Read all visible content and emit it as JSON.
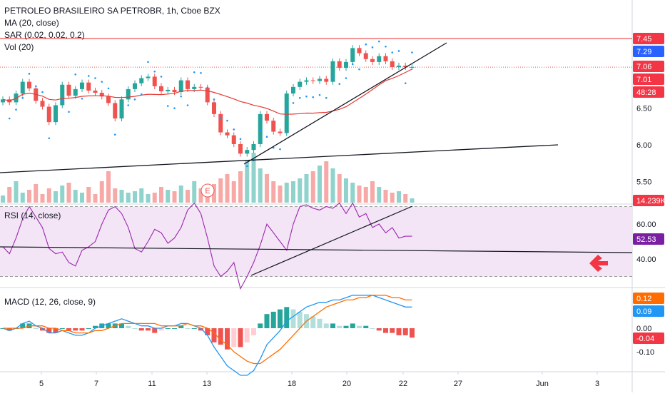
{
  "header": {
    "title": "PETROLEO BRASILEIRO SA PETROBR, 1h, Cboe BZX",
    "indicators": [
      "MA (20, close)",
      "SAR (0.02, 0.02, 0.2)",
      "Vol (20)"
    ]
  },
  "panes": {
    "rsi_label": "RSI (14, close)",
    "macd_label": "MACD (12, 26, close, 9)"
  },
  "price_axis": {
    "ticks": [
      "6.50",
      "6.00",
      "5.50"
    ],
    "markers": [
      {
        "text": "7.45",
        "color": "#f23645"
      },
      {
        "text": "7.29",
        "color": "#2962ff"
      },
      {
        "text": "7.06",
        "color": "#f23645"
      },
      {
        "text": "7.01",
        "color": "#f23645"
      },
      {
        "text": "48:28",
        "color": "#f23645"
      },
      {
        "text": "14.239K",
        "color": "#f23645"
      }
    ]
  },
  "rsi_axis": {
    "ticks": [
      "60.00",
      "40.00"
    ],
    "marker": {
      "text": "52.53",
      "color": "#7b1fa2"
    }
  },
  "macd_axis": {
    "ticks": [
      "0.00",
      "-0.10"
    ],
    "markers": [
      {
        "text": "0.12",
        "color": "#ff6d00"
      },
      {
        "text": "0.09",
        "color": "#2196f3"
      },
      {
        "text": "-0.04",
        "color": "#f23645"
      }
    ]
  },
  "time_axis": {
    "labels": [
      "5",
      "7",
      "11",
      "13",
      "18",
      "20",
      "22",
      "27",
      "Jun",
      "3"
    ]
  },
  "earnings_badge": "E",
  "colors": {
    "up": "#26a69a",
    "down": "#ef5350",
    "ma": "#e53935",
    "sar": "#2196f3",
    "rsi": "#9c27b0",
    "macd": "#2196f3",
    "signal": "#ff6d00",
    "rsi_band": "#f3e5f5",
    "arrow": "#f23645"
  },
  "chart_data": [
    {
      "type": "candlestick",
      "title": "PETROLEO BRASILEIRO SA PETROBR, 1h, Cboe BZX",
      "x": [
        "4",
        "5",
        "6",
        "7",
        "10",
        "11",
        "12",
        "13",
        "14",
        "17",
        "18",
        "19",
        "20",
        "21",
        "22",
        "23"
      ],
      "ohlc_closes": [
        6.62,
        6.58,
        6.7,
        6.86,
        6.77,
        6.6,
        6.52,
        6.31,
        6.54,
        6.82,
        6.67,
        6.76,
        6.85,
        6.74,
        6.71,
        6.66,
        6.57,
        6.36,
        6.62,
        6.76,
        6.84,
        6.91,
        6.93,
        6.8,
        6.73,
        6.75,
        6.72,
        6.88,
        6.76,
        6.79,
        6.78,
        6.58,
        6.42,
        6.17,
        6.13,
        6.01,
        5.88,
        5.93,
        6.01,
        6.42,
        6.33,
        6.18,
        6.16,
        6.7,
        6.79,
        6.86,
        6.88,
        6.87,
        6.9,
        6.86,
        7.14,
        7.05,
        7.13,
        7.32,
        7.25,
        7.17,
        7.13,
        7.21,
        7.14,
        7.06,
        7.08,
        7.06,
        7.06
      ],
      "current_price": 7.06,
      "horizontal_line": 7.45,
      "ylim": [
        5.3,
        7.85
      ],
      "y_ticks": [
        6.5,
        6.0,
        5.5
      ]
    },
    {
      "type": "bar",
      "title": "Vol (20)",
      "last_value": "14.239K"
    },
    {
      "type": "line",
      "title": "RSI (14, close)",
      "values": [
        47,
        43,
        52,
        63,
        70,
        64,
        58,
        46,
        43,
        44,
        38,
        36,
        45,
        47,
        50,
        60,
        68,
        70,
        66,
        58,
        46,
        44,
        50,
        57,
        55,
        49,
        52,
        58,
        68,
        72,
        66,
        52,
        36,
        30,
        33,
        38,
        23,
        30,
        38,
        48,
        60,
        55,
        50,
        45,
        60,
        70,
        71,
        69,
        68,
        70,
        69,
        72,
        66,
        72,
        64,
        66,
        58,
        60,
        55,
        58,
        52,
        53,
        53
      ],
      "last_value": 52.53,
      "ylim": [
        24,
        80
      ],
      "y_ticks": [
        60,
        40
      ]
    },
    {
      "type": "line",
      "title": "MACD (12, 26, close, 9)",
      "series": [
        {
          "values": [
            0.0,
            -0.01,
            0.0,
            0.02,
            0.03,
            0.01,
            0.0,
            -0.02,
            -0.02,
            -0.01,
            -0.02,
            -0.03,
            -0.03,
            -0.02,
            0.0,
            0.01,
            0.02,
            0.03,
            0.04,
            0.03,
            0.02,
            0.01,
            0.01,
            0.0,
            0.0,
            0.01,
            0.01,
            0.02,
            0.02,
            0.01,
            0.0,
            -0.03,
            -0.08,
            -0.12,
            -0.16,
            -0.18,
            -0.2,
            -0.2,
            -0.18,
            -0.13,
            -0.07,
            -0.04,
            -0.01,
            0.03,
            0.05,
            0.07,
            0.09,
            0.1,
            0.11,
            0.11,
            0.12,
            0.12,
            0.13,
            0.14,
            0.14,
            0.14,
            0.14,
            0.13,
            0.12,
            0.11,
            0.1,
            0.09,
            0.09
          ]
        },
        {
          "values": [
            0.0,
            0.0,
            0.0,
            0.0,
            0.01,
            0.01,
            0.01,
            0.0,
            0.0,
            -0.01,
            -0.01,
            -0.02,
            -0.02,
            -0.02,
            -0.01,
            -0.01,
            0.0,
            0.01,
            0.02,
            0.02,
            0.02,
            0.02,
            0.02,
            0.02,
            0.01,
            0.01,
            0.01,
            0.01,
            0.02,
            0.01,
            0.01,
            0.0,
            -0.02,
            -0.05,
            -0.07,
            -0.1,
            -0.12,
            -0.14,
            -0.15,
            -0.15,
            -0.13,
            -0.11,
            -0.09,
            -0.06,
            -0.03,
            0.0,
            0.03,
            0.05,
            0.07,
            0.09,
            0.1,
            0.11,
            0.12,
            0.12,
            0.13,
            0.13,
            0.14,
            0.14,
            0.14,
            0.13,
            0.13,
            0.12,
            0.12
          ]
        },
        {
          "values": [
            0.0,
            -0.01,
            0.0,
            0.02,
            0.02,
            0.0,
            -0.01,
            -0.02,
            -0.02,
            0.0,
            -0.01,
            -0.01,
            -0.01,
            0.0,
            0.01,
            0.02,
            0.02,
            0.02,
            0.02,
            0.01,
            0.0,
            -0.01,
            -0.01,
            -0.02,
            -0.01,
            0.0,
            0.0,
            0.01,
            0.0,
            0.0,
            -0.01,
            -0.03,
            -0.06,
            -0.07,
            -0.09,
            -0.08,
            -0.08,
            -0.06,
            -0.03,
            0.02,
            0.06,
            0.07,
            0.08,
            0.09,
            0.08,
            0.07,
            0.06,
            0.05,
            0.04,
            0.02,
            0.02,
            0.01,
            0.01,
            0.02,
            0.01,
            0.01,
            0.0,
            -0.01,
            -0.02,
            -0.02,
            -0.03,
            -0.03,
            -0.04
          ]
        }
      ],
      "last_values": [
        0.12,
        0.09,
        -0.04
      ],
      "ylim": [
        -0.22,
        0.15
      ],
      "y_ticks": [
        0.0,
        -0.1
      ]
    }
  ]
}
